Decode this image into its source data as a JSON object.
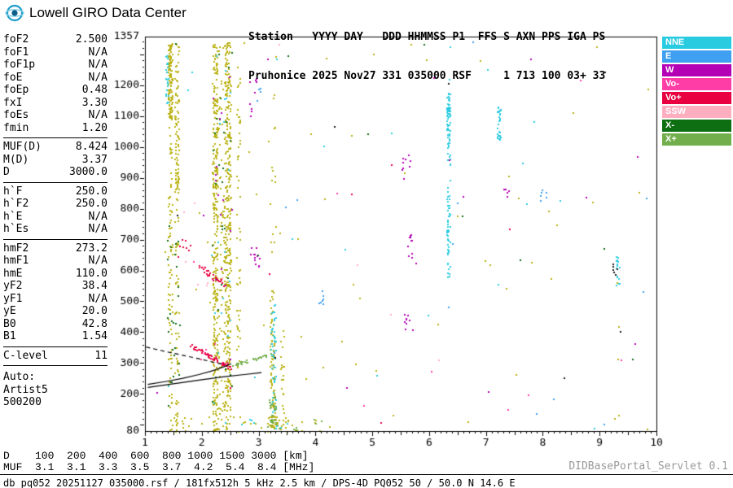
{
  "header": {
    "logo_text": "Lowell GIRO Data Center",
    "line1": "Station   YYYY DAY   DDD HHMMSS P1  FFS S AXN PPS IGA PS",
    "line2": "Pruhonice 2025 Nov27 331 035000 RSF     1 713 100 03+ 33"
  },
  "params": {
    "groups": [
      {
        "rows": [
          {
            "label": "foF2",
            "value": "2.500"
          },
          {
            "label": "foF1",
            "value": "N/A"
          },
          {
            "label": "foF1p",
            "value": "N/A"
          },
          {
            "label": "foE",
            "value": "N/A"
          },
          {
            "label": "foEp",
            "value": "0.48"
          },
          {
            "label": "fxI",
            "value": "3.30"
          },
          {
            "label": "foEs",
            "value": "N/A"
          },
          {
            "label": "fmin",
            "value": "1.20"
          }
        ]
      },
      {
        "rows": [
          {
            "label": "MUF(D)",
            "value": "8.424"
          },
          {
            "label": "M(D)",
            "value": "3.37"
          },
          {
            "label": "D",
            "value": "3000.0"
          }
        ]
      },
      {
        "rows": [
          {
            "label": "h`F",
            "value": "250.0"
          },
          {
            "label": "h`F2",
            "value": "250.0"
          },
          {
            "label": "h`E",
            "value": "N/A"
          },
          {
            "label": "h`Es",
            "value": "N/A"
          }
        ]
      },
      {
        "rows": [
          {
            "label": "hmF2",
            "value": "273.2"
          },
          {
            "label": "hmF1",
            "value": "N/A"
          },
          {
            "label": "hmE",
            "value": "110.0"
          },
          {
            "label": "yF2",
            "value": "38.4"
          },
          {
            "label": "yF1",
            "value": "N/A"
          },
          {
            "label": "yE",
            "value": "20.0"
          },
          {
            "label": "B0",
            "value": "42.8"
          },
          {
            "label": "B1",
            "value": "1.54"
          }
        ]
      },
      {
        "rows": [
          {
            "label": "C-level",
            "value": "11"
          }
        ]
      }
    ],
    "auto_lines": [
      "Auto:",
      "Artist5",
      "500200"
    ]
  },
  "legend": {
    "items": [
      {
        "label": "NNE",
        "color": "#29cbe0"
      },
      {
        "label": "E",
        "color": "#3f9ff0"
      },
      {
        "label": "W",
        "color": "#b400b4"
      },
      {
        "label": "Vo-",
        "color": "#ff3da6"
      },
      {
        "label": "Vo+",
        "color": "#e80040"
      },
      {
        "label": "SSW",
        "color": "#ffaec0"
      },
      {
        "label": "X-",
        "color": "#0e6e12"
      },
      {
        "label": "X+",
        "color": "#72ae4b"
      }
    ]
  },
  "chart_data": {
    "type": "scatter",
    "title": "Pruhonice ionogram 2025 Nov27 331 035000",
    "xlabel": "[MHz]",
    "ylabel": "[km]",
    "xlim": [
      1,
      10
    ],
    "ylim": [
      80,
      1357
    ],
    "x_ticks": [
      1,
      2,
      3,
      4,
      5,
      6,
      7,
      8,
      9,
      10
    ],
    "y_tick_labels": [
      1357,
      1200,
      1100,
      1000,
      900,
      800,
      700,
      600,
      500,
      400,
      300,
      200,
      80
    ],
    "grid": false,
    "legend_position": "right",
    "palette": {
      "olive": "#b9b011",
      "cyan": "#29cbe0",
      "blue": "#3f9ff0",
      "magenta": "#b400b4",
      "pink": "#ff3da6",
      "red": "#e80040",
      "salmon": "#ffaec0",
      "dgreen": "#0e6e12",
      "green": "#72ae4b",
      "black": "#1a1a1a"
    },
    "clusters": [
      {
        "c": "olive",
        "x": [
          1.4,
          1.47
        ],
        "y": [
          1080,
          1335
        ],
        "n": 130
      },
      {
        "c": "olive",
        "x": [
          1.4,
          1.47
        ],
        "y": [
          80,
          1080
        ],
        "n": 90
      },
      {
        "c": "olive",
        "x": [
          1.52,
          1.59
        ],
        "y": [
          850,
          1335
        ],
        "n": 90
      },
      {
        "c": "olive",
        "x": [
          1.52,
          1.59
        ],
        "y": [
          80,
          850
        ],
        "n": 55
      },
      {
        "c": "cyan",
        "x": [
          1.36,
          1.4
        ],
        "y": [
          1140,
          1300
        ],
        "n": 22
      },
      {
        "c": "dgreen",
        "x": [
          1.38,
          1.62
        ],
        "y": [
          150,
          750
        ],
        "n": 26
      },
      {
        "c": "olive",
        "x": [
          2.18,
          2.27
        ],
        "y": [
          80,
          1340
        ],
        "n": 330
      },
      {
        "c": "olive",
        "x": [
          2.39,
          2.5
        ],
        "y": [
          80,
          1340
        ],
        "n": 360
      },
      {
        "c": "olive",
        "x": [
          2.28,
          2.39
        ],
        "y": [
          80,
          1340
        ],
        "n": 70
      },
      {
        "c": "dgreen",
        "x": [
          2.16,
          2.52
        ],
        "y": [
          80,
          1340
        ],
        "n": 26
      },
      {
        "c": "cyan",
        "x": [
          2.16,
          2.52
        ],
        "y": [
          100,
          1300
        ],
        "n": 20
      },
      {
        "c": "magenta",
        "x": [
          2.16,
          2.52
        ],
        "y": [
          150,
          1250
        ],
        "n": 14
      },
      {
        "c": "olive",
        "x": [
          2.6,
          2.67
        ],
        "y": [
          280,
          1260
        ],
        "n": 55
      },
      {
        "c": "olive",
        "x": [
          3.19,
          3.28
        ],
        "y": [
          80,
          560
        ],
        "n": 90
      },
      {
        "c": "cyan",
        "x": [
          3.21,
          3.3
        ],
        "y": [
          130,
          520
        ],
        "n": 45
      },
      {
        "c": "green",
        "x": [
          3.17,
          3.3
        ],
        "y": [
          80,
          200
        ],
        "n": 26
      },
      {
        "c": "olive",
        "x": [
          3.19,
          3.3
        ],
        "y": [
          560,
          1340
        ],
        "n": 16
      },
      {
        "c": "olive",
        "x": [
          3.37,
          3.44
        ],
        "y": [
          80,
          420
        ],
        "n": 22
      },
      {
        "c": "cyan",
        "x": [
          6.3,
          6.36
        ],
        "y": [
          1000,
          1175
        ],
        "n": 60
      },
      {
        "c": "cyan",
        "x": [
          6.3,
          6.36
        ],
        "y": [
          580,
          860
        ],
        "n": 55
      },
      {
        "c": "cyan",
        "x": [
          6.3,
          6.36
        ],
        "y": [
          860,
          1000
        ],
        "n": 10
      },
      {
        "c": "cyan",
        "x": [
          7.19,
          7.25
        ],
        "y": [
          1025,
          1135
        ],
        "n": 30
      },
      {
        "c": "cyan",
        "x": [
          9.27,
          9.34
        ],
        "y": [
          555,
          645
        ],
        "n": 16
      },
      {
        "c": "black",
        "x": [
          9.22,
          9.3
        ],
        "y": [
          585,
          625
        ],
        "n": 6
      },
      {
        "c": "magenta",
        "x": [
          5.58,
          5.74
        ],
        "y": [
          640,
          720
        ],
        "n": 12
      },
      {
        "c": "magenta",
        "x": [
          5.5,
          5.68
        ],
        "y": [
          925,
          995
        ],
        "n": 8
      },
      {
        "c": "magenta",
        "x": [
          5.55,
          5.72
        ],
        "y": [
          400,
          470
        ],
        "n": 9
      },
      {
        "c": "magenta",
        "x": [
          2.85,
          3.01
        ],
        "y": [
          580,
          680
        ],
        "n": 12
      },
      {
        "c": "magenta",
        "x": [
          2.82,
          2.96
        ],
        "y": [
          1060,
          1230
        ],
        "n": 9
      },
      {
        "c": "magenta",
        "x": [
          7.3,
          7.42
        ],
        "y": [
          830,
          880
        ],
        "n": 5
      },
      {
        "c": "blue",
        "x": [
          4.03,
          4.16
        ],
        "y": [
          485,
          535
        ],
        "n": 7
      },
      {
        "c": "blue",
        "x": [
          7.92,
          8.1
        ],
        "y": [
          815,
          870
        ],
        "n": 6
      },
      {
        "c": "blue",
        "x": [
          2.95,
          3.06
        ],
        "y": [
          1140,
          1205
        ],
        "n": 4
      },
      {
        "c": "red",
        "p": "trace",
        "pts": [
          [
            1.76,
            362
          ],
          [
            1.9,
            348
          ],
          [
            2.05,
            334
          ],
          [
            2.2,
            318
          ],
          [
            2.32,
            304
          ],
          [
            2.45,
            291
          ],
          [
            2.55,
            286
          ]
        ],
        "n": 55,
        "sx": 0.03,
        "sy": 7
      },
      {
        "c": "red",
        "p": "trace",
        "pts": [
          [
            1.95,
            615
          ],
          [
            2.1,
            592
          ],
          [
            2.25,
            570
          ],
          [
            2.38,
            552
          ]
        ],
        "n": 26,
        "sx": 0.03,
        "sy": 10
      },
      {
        "c": "red",
        "x": [
          1.55,
          1.8
        ],
        "y": [
          615,
          705
        ],
        "n": 8
      },
      {
        "c": "pink",
        "x": [
          1.95,
          2.45
        ],
        "y": [
          300,
          370
        ],
        "n": 8
      },
      {
        "c": "salmon",
        "x": [
          1.9,
          2.4
        ],
        "y": [
          540,
          620
        ],
        "n": 6
      },
      {
        "c": "green",
        "p": "trace",
        "pts": [
          [
            2.52,
            296
          ],
          [
            2.7,
            303
          ],
          [
            2.9,
            313
          ],
          [
            3.1,
            326
          ],
          [
            3.3,
            342
          ]
        ],
        "n": 34,
        "sx": 0.02,
        "sy": 4
      },
      {
        "c": "olive",
        "x": [
          1.45,
          4.25
        ],
        "y": [
          80,
          128
        ],
        "n": 55
      },
      {
        "c": "green",
        "x": [
          3.05,
          4.1
        ],
        "y": [
          84,
          120
        ],
        "n": 14
      },
      {
        "c": "cyan",
        "x": [
          2.6,
          3.5
        ],
        "y": [
          84,
          125
        ],
        "n": 8
      },
      {
        "c": "olive",
        "x": [
          1.05,
          9.9
        ],
        "y": [
          80,
          1345
        ],
        "n": 60
      },
      {
        "c": "cyan",
        "x": [
          1.05,
          9.9
        ],
        "y": [
          80,
          1345
        ],
        "n": 22
      },
      {
        "c": "magenta",
        "x": [
          1.05,
          9.9
        ],
        "y": [
          80,
          1345
        ],
        "n": 16
      },
      {
        "c": "blue",
        "x": [
          1.05,
          9.9
        ],
        "y": [
          80,
          1345
        ],
        "n": 12
      },
      {
        "c": "dgreen",
        "x": [
          1.05,
          9.9
        ],
        "y": [
          80,
          1345
        ],
        "n": 10
      },
      {
        "c": "pink",
        "x": [
          1.05,
          9.9
        ],
        "y": [
          80,
          1345
        ],
        "n": 8
      },
      {
        "c": "salmon",
        "x": [
          1.05,
          9.9
        ],
        "y": [
          80,
          1345
        ],
        "n": 7
      },
      {
        "c": "black",
        "x": [
          1.05,
          9.9
        ],
        "y": [
          80,
          1345
        ],
        "n": 7
      },
      {
        "c": "red",
        "x": [
          1.05,
          9.9
        ],
        "y": [
          80,
          1345
        ],
        "n": 6
      }
    ],
    "profile_lines": [
      {
        "style": "dashed",
        "pts": [
          [
            1.02,
            352
          ],
          [
            1.35,
            338
          ],
          [
            1.7,
            324
          ],
          [
            2.0,
            312
          ],
          [
            2.2,
            303
          ],
          [
            2.38,
            296
          ]
        ]
      },
      {
        "style": "solid",
        "pts": [
          [
            1.05,
            231
          ],
          [
            1.35,
            240
          ],
          [
            1.65,
            250
          ],
          [
            1.95,
            263
          ],
          [
            2.2,
            276
          ],
          [
            2.4,
            289
          ],
          [
            2.52,
            298
          ]
        ]
      },
      {
        "style": "solid",
        "pts": [
          [
            1.05,
            221
          ],
          [
            1.5,
            233
          ],
          [
            1.95,
            245
          ],
          [
            2.4,
            256
          ],
          [
            2.75,
            263
          ],
          [
            3.05,
            269
          ]
        ]
      }
    ],
    "muf_table": {
      "d_km": [
        100,
        200,
        400,
        600,
        800,
        1000,
        1500,
        3000
      ],
      "muf_mhz": [
        3.1,
        3.1,
        3.3,
        3.5,
        3.7,
        4.2,
        5.4,
        8.4
      ]
    }
  },
  "footer": {
    "d_row": "D    100  200  400  600  800 1000 1500 3000 [km]",
    "muf_row": "MUF  3.1  3.1  3.3  3.5  3.7  4.2  5.4  8.4 [MHz]",
    "status": "db pq052 20251127 035000.rsf / 181fx512h 5 kHz 2.5 km / DPS-4D PQ052 50 / 50.0 N 14.6 E",
    "servlet": "DIDBasePortal_Servlet 0.1"
  }
}
